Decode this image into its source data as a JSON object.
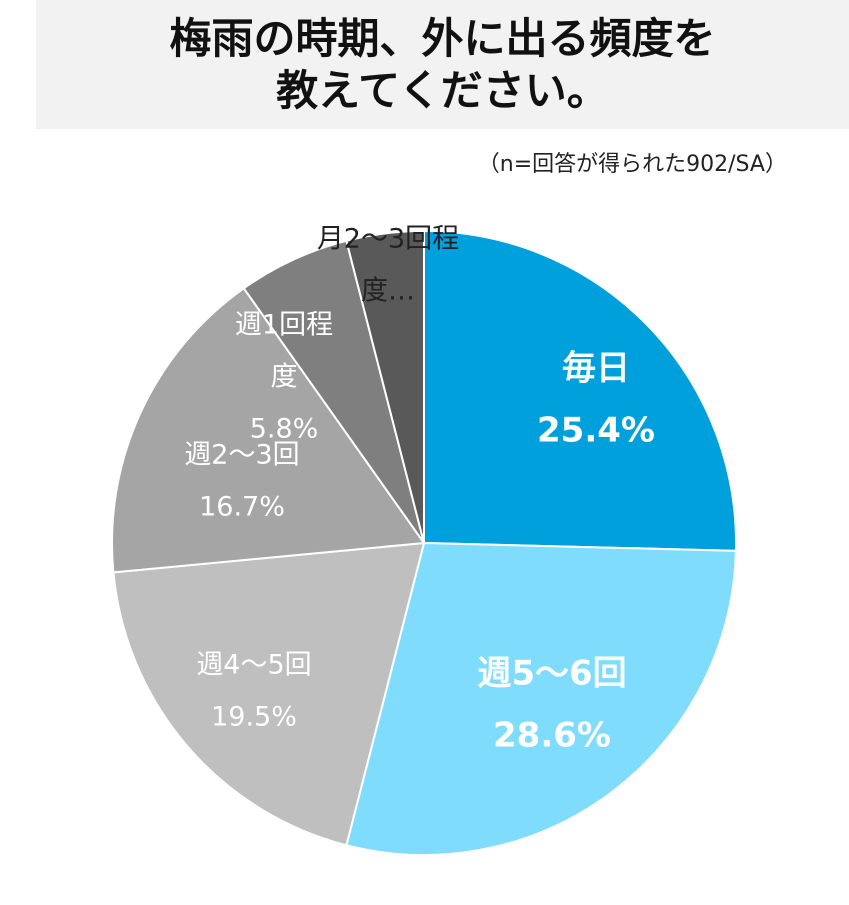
{
  "chart_data": {
    "type": "pie",
    "title_lines": [
      "梅雨の時期、外に出る頻度を",
      "教えてください。"
    ],
    "subtitle": "（n=回答が得られた902/SA）",
    "slices": [
      {
        "label": "毎日",
        "value": 25.4,
        "value_text": "25.4%",
        "color": "#00a0dc",
        "text_color": "#ffffff",
        "bold": true
      },
      {
        "label": "週5～6回",
        "value": 28.6,
        "value_text": "28.6%",
        "color": "#7fdcfd",
        "text_color": "#ffffff",
        "bold": true
      },
      {
        "label": "週4～5回",
        "value": 19.5,
        "value_text": "19.5%",
        "color": "#bfbfbf",
        "text_color": "#ffffff",
        "bold": false
      },
      {
        "label": "週2～3回",
        "value": 16.7,
        "value_text": "16.7%",
        "color": "#a5a5a5",
        "text_color": "#ffffff",
        "bold": false
      },
      {
        "label_lines": [
          "週1回程",
          "度"
        ],
        "value": 5.8,
        "value_text": "5.8%",
        "color": "#7f7f7f",
        "text_color": "#ffffff",
        "bold": false
      },
      {
        "label_lines": [
          "月2～3回程",
          "度…"
        ],
        "value": 4.0,
        "color": "#595959",
        "text_color": "#222222",
        "bold": false
      }
    ]
  }
}
